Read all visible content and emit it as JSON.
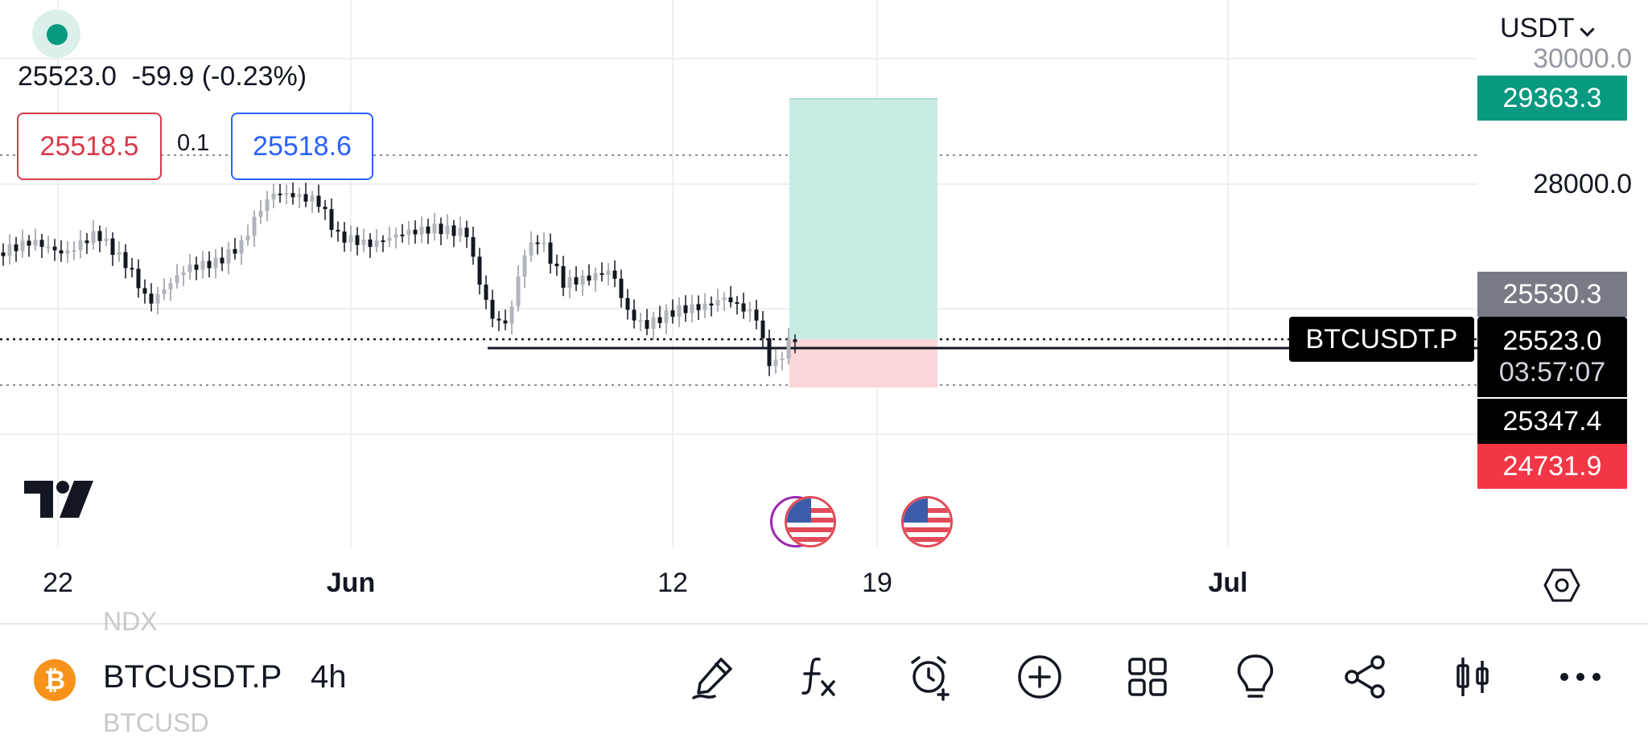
{
  "header": {
    "quote": "25523.0  -59.9 (-0.23%)",
    "sell_price": "25518.5",
    "spread": "0.1",
    "buy_price": "25518.6",
    "currency": "USDT"
  },
  "price_axis": {
    "labels": [
      "30000.0",
      "28000.0"
    ],
    "tags": {
      "target": "29363.3",
      "high": "25530.3",
      "last": "25523.0",
      "countdown": "03:57:07",
      "entry": "25347.4",
      "stop": "24731.9"
    },
    "symbol_tag": "BTCUSDT.P"
  },
  "time_axis": {
    "labels": [
      "22",
      "Jun",
      "12",
      "19",
      "Jul"
    ]
  },
  "bottom_bar": {
    "ghost_above": "NDX",
    "ghost_below": "BTCUSD",
    "coin_glyph": "₿",
    "symbol": "BTCUSDT.P",
    "interval": "4h",
    "tools": [
      "pencil-icon",
      "indicators-icon",
      "alert-icon",
      "add-icon",
      "layout-icon",
      "ideas-icon",
      "share-icon",
      "chart-type-icon",
      "more-icon"
    ]
  },
  "colors": {
    "up": "#089981",
    "down": "#f23645",
    "tag_target": "#089981",
    "tag_high": "#787b86",
    "tag_last": "#000000",
    "tag_stop": "#f23645",
    "profit_zone": "#c9ebe6",
    "loss_zone": "#fcd6d9"
  },
  "chart_data": {
    "type": "candlestick",
    "symbol": "BTCUSDT.P",
    "interval": "4h",
    "last_price": 25523.0,
    "y_axis_ticks": [
      30000.0,
      28000.0
    ],
    "x_axis_ticks": [
      "22",
      "Jun",
      "12",
      "19",
      "Jul"
    ],
    "position": {
      "entry": 25347.4,
      "target": 29363.3,
      "stop": 24731.9
    }
  }
}
